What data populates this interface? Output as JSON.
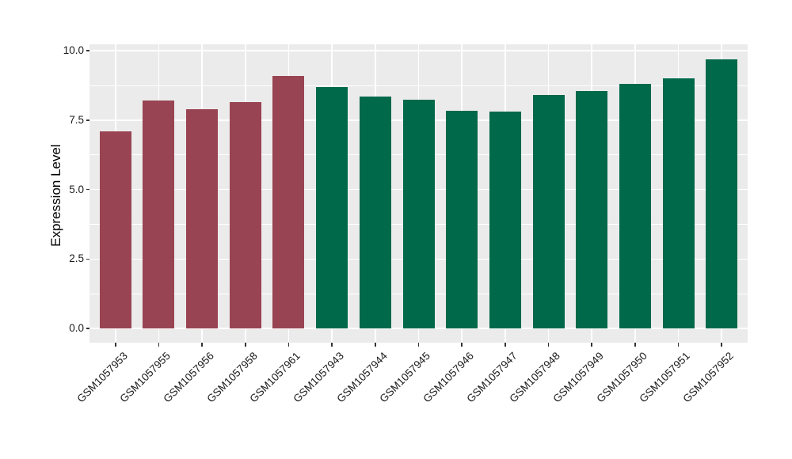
{
  "chart_data": {
    "type": "bar",
    "title": "",
    "xlabel": "",
    "ylabel": "Expression Level",
    "categories": [
      "GSM1057953",
      "GSM1057955",
      "GSM1057956",
      "GSM1057958",
      "GSM1057961",
      "GSM1057943",
      "GSM1057944",
      "GSM1057945",
      "GSM1057946",
      "GSM1057947",
      "GSM1057948",
      "GSM1057949",
      "GSM1057950",
      "GSM1057951",
      "GSM1057952"
    ],
    "values": [
      7.1,
      8.2,
      7.9,
      8.15,
      9.1,
      8.7,
      8.35,
      8.25,
      7.85,
      7.8,
      8.4,
      8.55,
      8.8,
      9.0,
      9.7
    ],
    "bar_colors": [
      "#994452",
      "#994452",
      "#994452",
      "#994452",
      "#994452",
      "#00694A",
      "#00694A",
      "#00694A",
      "#00694A",
      "#00694A",
      "#00694A",
      "#00694A",
      "#00694A",
      "#00694A",
      "#00694A"
    ],
    "groups": [
      {
        "color": "#994452",
        "count": 5
      },
      {
        "color": "#00694A",
        "count": 10
      }
    ],
    "yticks": {
      "values": [
        0,
        2.5,
        5,
        7.5,
        10
      ],
      "labels": [
        "0.0",
        "2.5",
        "5.0",
        "7.5",
        "10.0"
      ]
    },
    "yminor": [
      1.25,
      3.75,
      6.25,
      8.75
    ],
    "ylim": [
      -0.51,
      10.23
    ],
    "grid": "on",
    "legend_position": "none",
    "panel_bg": "#EBEBEB",
    "grid_color": "#FFFFFF",
    "tick_color": "#333333"
  }
}
